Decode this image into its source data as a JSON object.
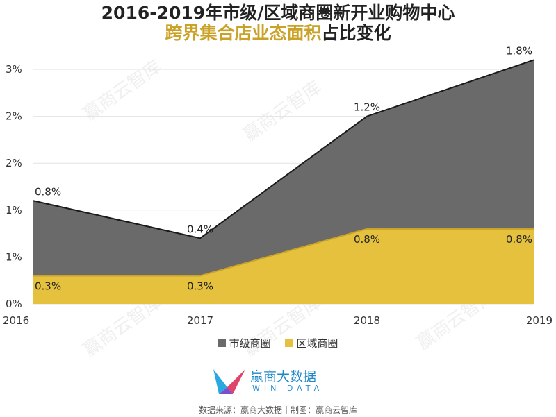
{
  "title": {
    "line1": "2016-2019年市级/区域商圈新开业购物中心",
    "line2_highlight": "跨界集合店业态面积",
    "line2_rest": "占比变化"
  },
  "chart_data": {
    "type": "area",
    "stacked": true,
    "categories": [
      "2016",
      "2017",
      "2018",
      "2019"
    ],
    "y_tick_labels": [
      "0%",
      "1%",
      "1%",
      "2%",
      "2%",
      "3%"
    ],
    "ylim": [
      0,
      2.5
    ],
    "grid": true,
    "legend_position": "bottom",
    "series": [
      {
        "name": "区域商圈",
        "color": "#e5c13e",
        "values": [
          0.3,
          0.3,
          0.8,
          0.8
        ],
        "labels": [
          "0.3%",
          "0.3%",
          "0.8%",
          "0.8%"
        ]
      },
      {
        "name": "市级商圈",
        "color": "#6a6a6a",
        "values": [
          0.8,
          0.4,
          1.2,
          1.8
        ],
        "labels": [
          "0.8%",
          "0.4%",
          "1.2%",
          "1.8%"
        ]
      }
    ]
  },
  "legend": [
    {
      "label": "市级商圈",
      "color": "#6a6a6a"
    },
    {
      "label": "区域商圈",
      "color": "#e5c13e"
    }
  ],
  "logo": {
    "name": "赢商大数据",
    "sub": "WIN DATA"
  },
  "source": "数据来源：赢商大数据丨制图：赢商云智库",
  "watermark": "赢商云智库"
}
